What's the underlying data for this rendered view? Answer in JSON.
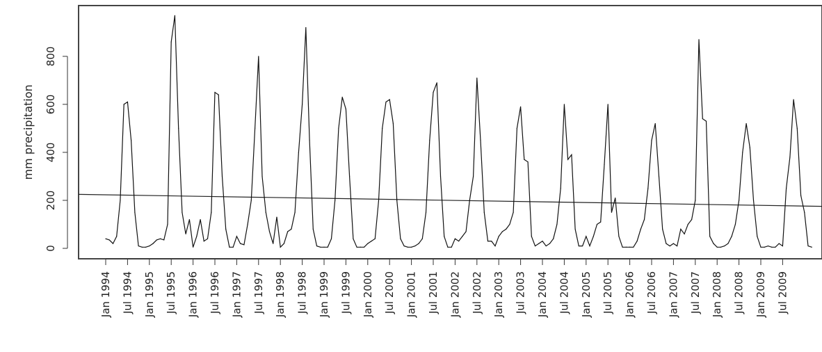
{
  "chart_data": {
    "type": "line",
    "title": "",
    "xlabel": "",
    "ylabel": "mm precipitation",
    "ylim": [
      -45,
      1000
    ],
    "yticks": [
      0,
      200,
      400,
      600,
      800
    ],
    "ytick_labels": [
      "0",
      "200",
      "400",
      "600",
      "800"
    ],
    "xticks": [
      "Jan 1994",
      "Jul 1994",
      "Jan 1995",
      "Jul 1995",
      "Jan 1996",
      "Jul 1996",
      "Jan 1997",
      "Jul 1997",
      "Jan 1998",
      "Jul 1998",
      "Jan 1999",
      "Jul 1999",
      "Jan 2000",
      "Jul 2000",
      "Jan 2001",
      "Jul 2001",
      "Jan 2002",
      "Jul 2002",
      "Jan 2003",
      "Jul 2003",
      "Jan 2004",
      "Jul 2004",
      "Jan 2005",
      "Jul 2005",
      "Jan 2006",
      "Jul 2006",
      "Jan 2007",
      "Jul 2007",
      "Jan 2008",
      "Jul 2008",
      "Jan 2009",
      "Jul 2009"
    ],
    "grid": false,
    "legend": "none",
    "series": [
      {
        "start": "Jan 1994",
        "frequency": "monthly",
        "values": [
          40,
          35,
          20,
          50,
          200,
          600,
          610,
          450,
          150,
          10,
          5,
          5,
          10,
          20,
          35,
          40,
          35,
          100,
          860,
          970,
          500,
          150,
          60,
          120,
          5,
          50,
          120,
          30,
          40,
          150,
          650,
          640,
          300,
          80,
          5,
          5,
          50,
          20,
          15,
          100,
          200,
          500,
          800,
          300,
          150,
          70,
          20,
          130,
          5,
          20,
          70,
          80,
          150,
          400,
          600,
          920,
          450,
          80,
          10,
          5,
          5,
          5,
          40,
          200,
          500,
          630,
          580,
          300,
          40,
          5,
          5,
          5,
          20,
          30,
          40,
          200,
          500,
          610,
          620,
          520,
          200,
          40,
          10,
          5,
          5,
          10,
          20,
          40,
          150,
          450,
          650,
          690,
          300,
          50,
          5,
          5,
          40,
          30,
          50,
          70,
          200,
          300,
          710,
          450,
          150,
          30,
          30,
          10,
          50,
          70,
          80,
          100,
          150,
          500,
          590,
          370,
          360,
          50,
          10,
          20,
          30,
          10,
          20,
          40,
          100,
          250,
          600,
          370,
          390,
          80,
          10,
          10,
          50,
          10,
          50,
          100,
          110,
          350,
          600,
          150,
          210,
          50,
          5,
          5,
          5,
          5,
          30,
          80,
          120,
          250,
          450,
          520,
          300,
          80,
          20,
          10,
          20,
          10,
          80,
          60,
          100,
          120,
          200,
          870,
          540,
          530,
          50,
          20,
          5,
          5,
          10,
          20,
          50,
          100,
          200,
          400,
          520,
          420,
          200,
          50,
          5,
          5,
          10,
          5,
          5,
          20,
          10,
          250,
          380,
          620,
          500,
          220,
          150,
          10,
          5
        ]
      },
      {
        "type": "trend",
        "start_value": 225,
        "end_value": 175
      }
    ]
  }
}
